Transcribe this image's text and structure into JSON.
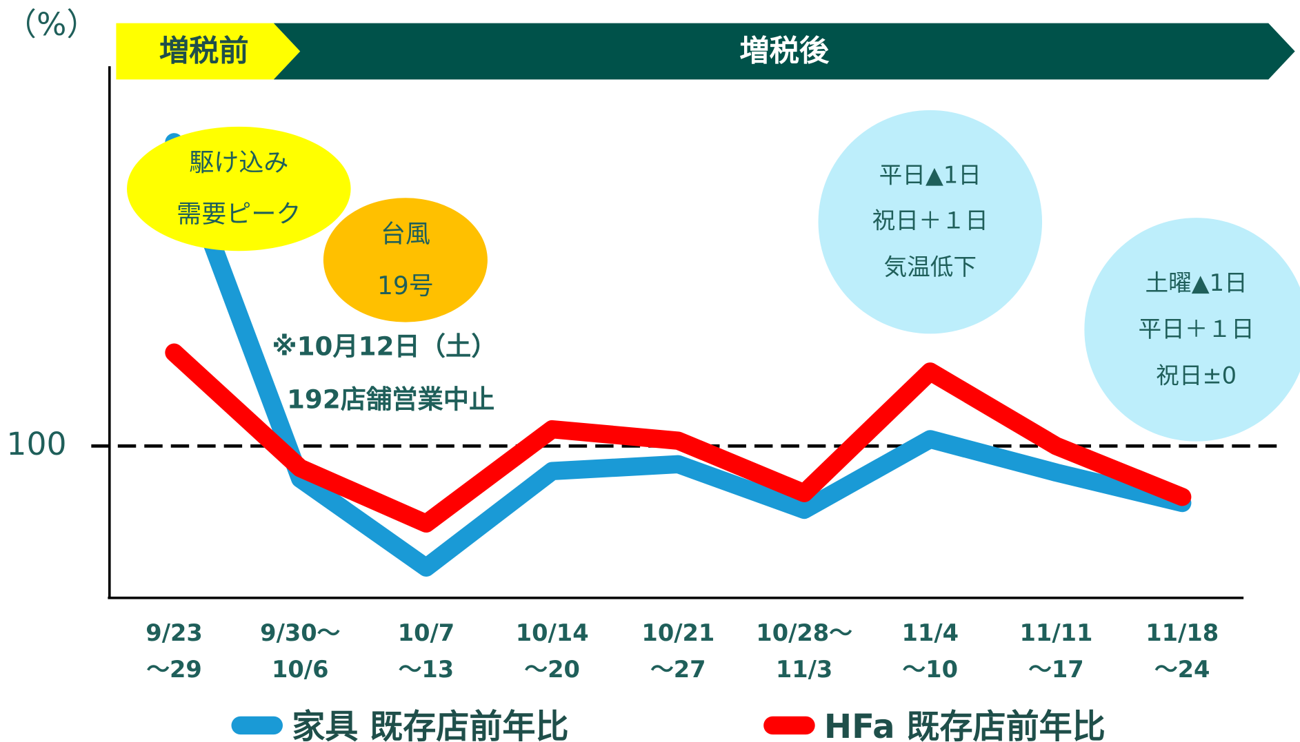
{
  "chart_data": {
    "type": "line",
    "y_unit_label": "（%）",
    "phases": [
      "増税前",
      "増税後"
    ],
    "categories": [
      [
        "9/23",
        "～29"
      ],
      [
        "9/30～",
        "10/6"
      ],
      [
        "10/7",
        "～13"
      ],
      [
        "10/14",
        "～20"
      ],
      [
        "10/21",
        "～27"
      ],
      [
        "10/28～",
        "11/3"
      ],
      [
        "11/4",
        "～10"
      ],
      [
        "11/11",
        "～17"
      ],
      [
        "11/18",
        "～24"
      ]
    ],
    "series": [
      {
        "name": "家具 既存店前年比",
        "color": "#1a9ad6",
        "values": [
          140,
          95.7,
          84,
          96.7,
          97.6,
          91.6,
          100.9,
          96.5,
          92.5
        ]
      },
      {
        "name": "HFa 既存店前年比",
        "color": "#ff0000",
        "values": [
          112.3,
          97.1,
          89.8,
          102.2,
          100.7,
          93.8,
          109.8,
          100,
          93.3
        ]
      }
    ],
    "ylim": [
      80,
      150
    ],
    "yticks": [
      100
    ],
    "annotations": [
      [
        "駆け込み",
        "需要ピーク"
      ],
      [
        "台風",
        "19号"
      ],
      [
        "※10月12日（土）",
        "192店舗営業中止"
      ],
      [
        "平日▲1日",
        "祝日＋１日",
        "気温低下"
      ],
      [
        "土曜▲1日",
        "平日＋１日",
        "祝日±0"
      ]
    ]
  }
}
